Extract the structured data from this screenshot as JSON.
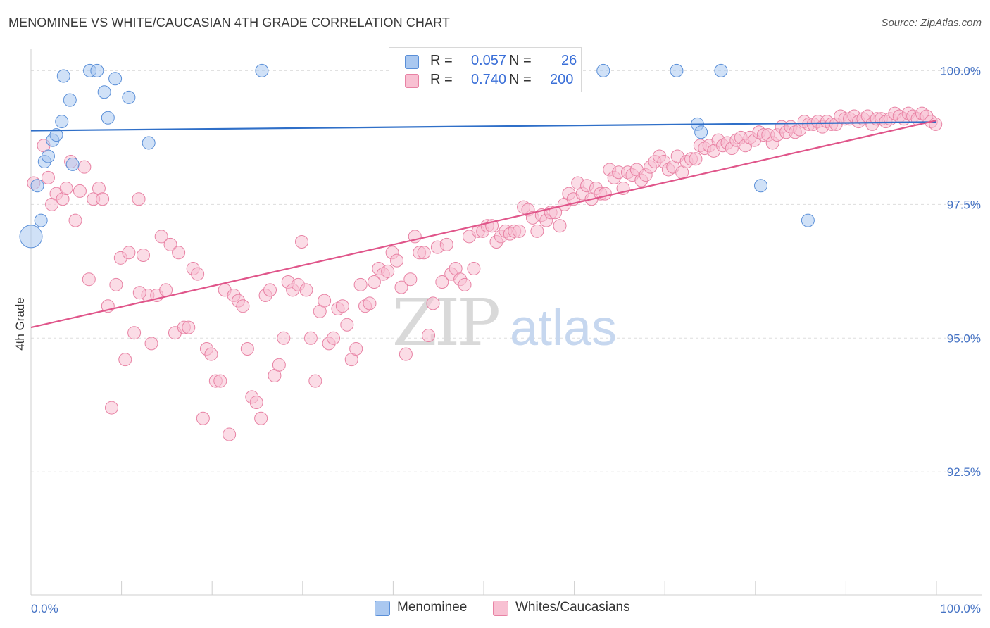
{
  "title": "MENOMINEE VS WHITE/CAUCASIAN 4TH GRADE CORRELATION CHART",
  "source": "Source: ZipAtlas.com",
  "watermark": {
    "zip": "ZIP",
    "atlas": "atlas"
  },
  "colors": {
    "blue_fill": "#aac8f0",
    "blue_stroke": "#5a8fd8",
    "blue_line": "#2f6fc8",
    "pink_fill": "#f8c0d2",
    "pink_stroke": "#e882a4",
    "pink_line": "#e0558a",
    "tick_label": "#4472c4",
    "grid": "#dddddd"
  },
  "legend": {
    "rows": [
      {
        "r_label": "R =",
        "r_value": "0.057",
        "n_label": "N =",
        "n_value": "26"
      },
      {
        "r_label": "R =",
        "r_value": "0.740",
        "n_label": "N =",
        "n_value": "200"
      }
    ]
  },
  "bottom_legend": [
    "Menominee",
    "Whites/Caucasians"
  ],
  "chart_data": {
    "type": "scatter",
    "title": "MENOMINEE VS WHITE/CAUCASIAN 4TH GRADE CORRELATION CHART",
    "xlabel": "",
    "ylabel": "4th Grade",
    "xlim": [
      0,
      100
    ],
    "ylim": [
      90.2,
      100.4
    ],
    "x_tick_labels": [
      "0.0%",
      "100.0%"
    ],
    "y_ticks": [
      92.5,
      95.0,
      97.5,
      100.0
    ],
    "y_tick_labels": [
      "92.5%",
      "95.0%",
      "97.5%",
      "100.0%"
    ],
    "grid": "horizontal dashed",
    "legend_position": "top-center",
    "series": [
      {
        "name": "Menominee",
        "R": 0.057,
        "N": 26,
        "trend": [
          [
            0,
            98.88
          ],
          [
            100,
            99.04
          ]
        ],
        "points": [
          [
            0.0,
            96.9
          ],
          [
            0.7,
            97.85
          ],
          [
            1.1,
            97.2
          ],
          [
            1.5,
            98.3
          ],
          [
            1.9,
            98.4
          ],
          [
            2.4,
            98.7
          ],
          [
            2.8,
            98.8
          ],
          [
            3.4,
            99.05
          ],
          [
            3.6,
            99.9
          ],
          [
            4.3,
            99.45
          ],
          [
            4.6,
            98.25
          ],
          [
            6.5,
            100.0
          ],
          [
            7.3,
            100.0
          ],
          [
            8.1,
            99.6
          ],
          [
            8.5,
            99.12
          ],
          [
            9.3,
            99.85
          ],
          [
            10.8,
            99.5
          ],
          [
            13.0,
            98.65
          ],
          [
            25.5,
            100.0
          ],
          [
            63.2,
            100.0
          ],
          [
            71.3,
            100.0
          ],
          [
            73.6,
            99.0
          ],
          [
            74.0,
            98.85
          ],
          [
            76.2,
            100.0
          ],
          [
            80.6,
            97.85
          ],
          [
            85.8,
            97.2
          ]
        ]
      },
      {
        "name": "Whites/Caucasians",
        "R": 0.74,
        "N": 200,
        "trend": [
          [
            0,
            95.2
          ],
          [
            100,
            99.07
          ]
        ],
        "points": [
          [
            0.3,
            97.9
          ],
          [
            1.4,
            98.6
          ],
          [
            1.9,
            98.0
          ],
          [
            2.3,
            97.5
          ],
          [
            2.8,
            97.7
          ],
          [
            3.5,
            97.6
          ],
          [
            3.9,
            97.8
          ],
          [
            4.4,
            98.3
          ],
          [
            4.9,
            97.2
          ],
          [
            5.4,
            97.75
          ],
          [
            5.9,
            98.2
          ],
          [
            6.4,
            96.1
          ],
          [
            6.9,
            97.6
          ],
          [
            7.5,
            97.8
          ],
          [
            7.9,
            97.6
          ],
          [
            8.5,
            95.6
          ],
          [
            8.9,
            93.7
          ],
          [
            9.4,
            96.0
          ],
          [
            9.9,
            96.5
          ],
          [
            10.4,
            94.6
          ],
          [
            10.8,
            96.6
          ],
          [
            11.4,
            95.1
          ],
          [
            11.9,
            97.6
          ],
          [
            12.4,
            96.55
          ],
          [
            12.9,
            95.8
          ],
          [
            13.3,
            94.9
          ],
          [
            13.9,
            95.8
          ],
          [
            14.4,
            96.9
          ],
          [
            14.9,
            95.9
          ],
          [
            15.4,
            96.75
          ],
          [
            15.9,
            95.1
          ],
          [
            16.3,
            96.6
          ],
          [
            16.9,
            95.2
          ],
          [
            17.4,
            95.2
          ],
          [
            17.9,
            96.3
          ],
          [
            18.4,
            96.2
          ],
          [
            19.0,
            93.5
          ],
          [
            19.4,
            94.8
          ],
          [
            19.9,
            94.7
          ],
          [
            20.4,
            94.2
          ],
          [
            20.9,
            94.2
          ],
          [
            21.4,
            95.9
          ],
          [
            21.9,
            93.2
          ],
          [
            22.4,
            95.8
          ],
          [
            22.9,
            95.7
          ],
          [
            23.4,
            95.6
          ],
          [
            23.9,
            94.8
          ],
          [
            24.4,
            93.9
          ],
          [
            24.9,
            93.8
          ],
          [
            25.4,
            93.5
          ],
          [
            25.9,
            95.8
          ],
          [
            26.4,
            95.9
          ],
          [
            26.9,
            94.3
          ],
          [
            27.4,
            94.5
          ],
          [
            27.9,
            95.0
          ],
          [
            28.4,
            96.05
          ],
          [
            28.9,
            95.9
          ],
          [
            29.5,
            96.0
          ],
          [
            29.9,
            96.8
          ],
          [
            30.4,
            95.9
          ],
          [
            30.9,
            95.0
          ],
          [
            31.4,
            94.2
          ],
          [
            31.9,
            95.5
          ],
          [
            32.4,
            95.7
          ],
          [
            32.9,
            94.9
          ],
          [
            33.4,
            95.0
          ],
          [
            33.9,
            95.55
          ],
          [
            34.4,
            95.6
          ],
          [
            34.9,
            95.25
          ],
          [
            35.4,
            94.6
          ],
          [
            35.9,
            94.8
          ],
          [
            36.4,
            96.0
          ],
          [
            36.9,
            95.6
          ],
          [
            37.4,
            95.65
          ],
          [
            37.9,
            96.05
          ],
          [
            38.4,
            96.3
          ],
          [
            38.9,
            96.2
          ],
          [
            39.4,
            96.25
          ],
          [
            39.9,
            96.6
          ],
          [
            40.4,
            96.45
          ],
          [
            40.9,
            95.95
          ],
          [
            41.4,
            94.7
          ],
          [
            41.9,
            96.1
          ],
          [
            42.4,
            96.9
          ],
          [
            42.9,
            96.6
          ],
          [
            43.4,
            96.6
          ],
          [
            43.9,
            95.05
          ],
          [
            44.4,
            95.65
          ],
          [
            44.9,
            96.7
          ],
          [
            45.4,
            96.05
          ],
          [
            45.9,
            96.75
          ],
          [
            46.4,
            96.2
          ],
          [
            46.9,
            96.3
          ],
          [
            47.4,
            96.1
          ],
          [
            47.9,
            96.0
          ],
          [
            48.4,
            96.9
          ],
          [
            48.9,
            96.3
          ],
          [
            49.4,
            97.0
          ],
          [
            49.9,
            97.0
          ],
          [
            50.4,
            97.1
          ],
          [
            50.9,
            97.1
          ],
          [
            51.4,
            96.8
          ],
          [
            51.9,
            96.9
          ],
          [
            52.4,
            97.0
          ],
          [
            52.9,
            96.95
          ],
          [
            53.4,
            97.0
          ],
          [
            53.9,
            97.0
          ],
          [
            54.4,
            97.45
          ],
          [
            54.9,
            97.4
          ],
          [
            55.4,
            97.25
          ],
          [
            55.9,
            97.0
          ],
          [
            56.4,
            97.3
          ],
          [
            56.9,
            97.2
          ],
          [
            57.4,
            97.35
          ],
          [
            57.9,
            97.35
          ],
          [
            58.4,
            97.1
          ],
          [
            58.9,
            97.5
          ],
          [
            59.4,
            97.7
          ],
          [
            59.9,
            97.6
          ],
          [
            60.4,
            97.9
          ],
          [
            60.9,
            97.7
          ],
          [
            61.4,
            97.85
          ],
          [
            61.9,
            97.6
          ],
          [
            62.4,
            97.8
          ],
          [
            62.9,
            97.7
          ],
          [
            63.4,
            97.7
          ],
          [
            63.9,
            98.15
          ],
          [
            64.4,
            98.0
          ],
          [
            64.9,
            98.1
          ],
          [
            65.4,
            97.8
          ],
          [
            65.9,
            98.1
          ],
          [
            66.4,
            98.05
          ],
          [
            66.9,
            98.15
          ],
          [
            67.4,
            97.95
          ],
          [
            67.9,
            98.05
          ],
          [
            68.4,
            98.2
          ],
          [
            68.9,
            98.3
          ],
          [
            69.4,
            98.4
          ],
          [
            69.9,
            98.3
          ],
          [
            70.4,
            98.15
          ],
          [
            70.9,
            98.2
          ],
          [
            71.4,
            98.4
          ],
          [
            71.9,
            98.1
          ],
          [
            72.4,
            98.3
          ],
          [
            72.9,
            98.35
          ],
          [
            73.4,
            98.35
          ],
          [
            73.9,
            98.6
          ],
          [
            74.4,
            98.55
          ],
          [
            74.9,
            98.6
          ],
          [
            75.4,
            98.5
          ],
          [
            75.9,
            98.7
          ],
          [
            76.4,
            98.6
          ],
          [
            76.9,
            98.65
          ],
          [
            77.4,
            98.55
          ],
          [
            77.9,
            98.7
          ],
          [
            78.4,
            98.75
          ],
          [
            78.9,
            98.6
          ],
          [
            79.4,
            98.75
          ],
          [
            79.9,
            98.7
          ],
          [
            80.4,
            98.85
          ],
          [
            80.9,
            98.8
          ],
          [
            81.4,
            98.8
          ],
          [
            81.9,
            98.65
          ],
          [
            82.4,
            98.8
          ],
          [
            82.9,
            98.95
          ],
          [
            83.4,
            98.85
          ],
          [
            83.9,
            98.95
          ],
          [
            84.4,
            98.85
          ],
          [
            84.9,
            98.9
          ],
          [
            85.4,
            99.05
          ],
          [
            85.9,
            99.0
          ],
          [
            86.4,
            99.0
          ],
          [
            86.9,
            99.05
          ],
          [
            87.4,
            98.95
          ],
          [
            87.9,
            99.05
          ],
          [
            88.4,
            99.0
          ],
          [
            88.9,
            99.0
          ],
          [
            89.4,
            99.15
          ],
          [
            89.9,
            99.1
          ],
          [
            90.4,
            99.1
          ],
          [
            90.9,
            99.15
          ],
          [
            91.4,
            99.05
          ],
          [
            91.9,
            99.1
          ],
          [
            92.4,
            99.15
          ],
          [
            92.9,
            99.0
          ],
          [
            93.4,
            99.1
          ],
          [
            93.9,
            99.1
          ],
          [
            94.4,
            99.05
          ],
          [
            94.9,
            99.1
          ],
          [
            95.4,
            99.2
          ],
          [
            95.9,
            99.15
          ],
          [
            96.4,
            99.1
          ],
          [
            96.9,
            99.2
          ],
          [
            97.4,
            99.15
          ],
          [
            97.9,
            99.1
          ],
          [
            98.4,
            99.2
          ],
          [
            98.9,
            99.15
          ],
          [
            99.4,
            99.05
          ],
          [
            99.9,
            99.0
          ],
          [
            12.0,
            95.85
          ]
        ]
      }
    ]
  }
}
